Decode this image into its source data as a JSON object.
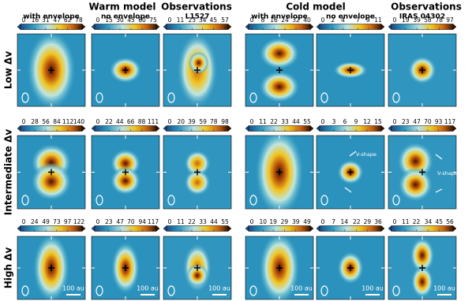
{
  "header": {
    "warm": "Warm model",
    "obs_left": "Observations",
    "cold": "Cold model",
    "obs_right": "Observations"
  },
  "columns": [
    "with envelope",
    "no envelope",
    "L1527",
    "with envelope",
    "no envelope",
    "IRAS 04302"
  ],
  "rows": [
    {
      "label": "Low Δv",
      "panels": [
        {
          "ticks": [
            0,
            16,
            31,
            47,
            62,
            78
          ]
        },
        {
          "ticks": [
            0,
            15,
            30,
            45,
            60,
            75
          ]
        },
        {
          "ticks": [
            0,
            11,
            23,
            34,
            45,
            57
          ]
        },
        {
          "ticks": [
            0,
            8,
            16,
            24,
            32,
            40
          ]
        },
        {
          "ticks": [
            0,
            2,
            4,
            7,
            9,
            11
          ]
        },
        {
          "ticks": [
            0,
            19,
            39,
            58,
            78,
            97
          ]
        }
      ]
    },
    {
      "label": "Intermediate Δv",
      "panels": [
        {
          "ticks": [
            0,
            28,
            56,
            84,
            112,
            140
          ]
        },
        {
          "ticks": [
            0,
            22,
            44,
            66,
            88,
            111
          ]
        },
        {
          "ticks": [
            0,
            20,
            39,
            59,
            78,
            98
          ]
        },
        {
          "ticks": [
            0,
            11,
            22,
            33,
            44,
            55
          ]
        },
        {
          "ticks": [
            0,
            3,
            6,
            9,
            12,
            15
          ],
          "annotation": "V-shape"
        },
        {
          "ticks": [
            0,
            23,
            47,
            70,
            93,
            117
          ],
          "annotation": "V-shape"
        }
      ]
    },
    {
      "label": "High Δv",
      "panels": [
        {
          "ticks": [
            0,
            24,
            49,
            73,
            97,
            122
          ],
          "scalebar": "100 au"
        },
        {
          "ticks": [
            0,
            23,
            47,
            70,
            94,
            117
          ],
          "scalebar": "100 au"
        },
        {
          "ticks": [
            0,
            11,
            22,
            33,
            44,
            55
          ],
          "scalebar": "100 au"
        },
        {
          "ticks": [
            0,
            10,
            19,
            29,
            39,
            49
          ],
          "scalebar": "100 au"
        },
        {
          "ticks": [
            0,
            7,
            14,
            22,
            29,
            36
          ],
          "scalebar": "100 au"
        },
        {
          "ticks": [
            0,
            11,
            22,
            34,
            45,
            56
          ],
          "scalebar": "100 au"
        }
      ]
    }
  ]
}
